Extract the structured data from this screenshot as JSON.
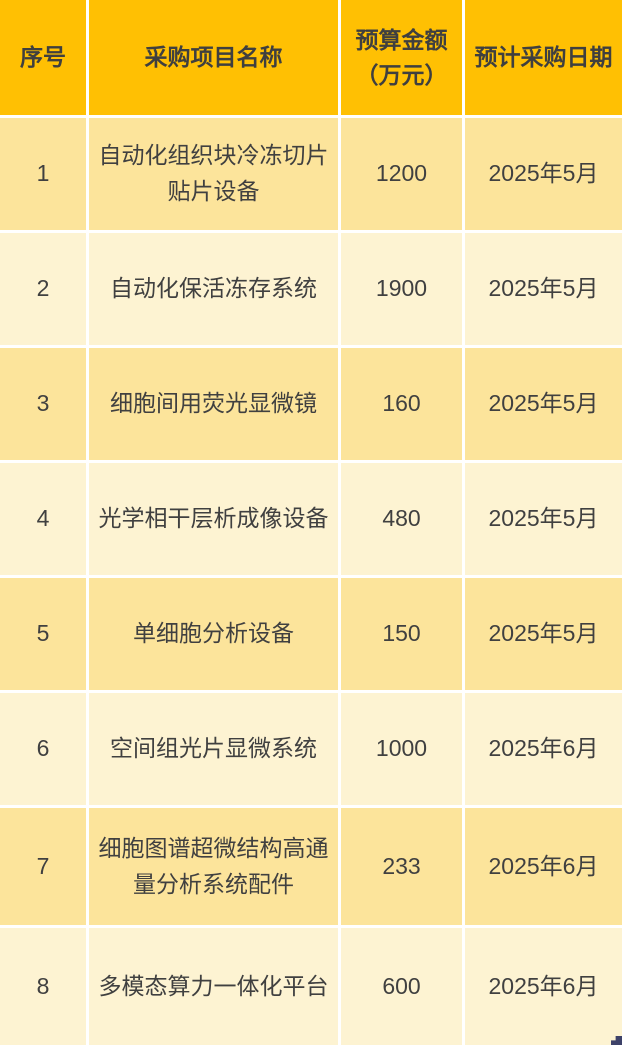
{
  "table": {
    "columns": [
      {
        "label": "序号"
      },
      {
        "label": "采购项目名称"
      },
      {
        "label": "预算金额\n（万元）"
      },
      {
        "label": "预计采购日期"
      }
    ],
    "rows": [
      {
        "no": "1",
        "name": "自动化组织块冷冻切片贴片设备",
        "budget": "1200",
        "date": "2025年5月"
      },
      {
        "no": "2",
        "name": "自动化保活冻存系统",
        "budget": "1900",
        "date": "2025年5月"
      },
      {
        "no": "3",
        "name": "细胞间用荧光显微镜",
        "budget": "160",
        "date": "2025年5月"
      },
      {
        "no": "4",
        "name": "光学相干层析成像设备",
        "budget": "480",
        "date": "2025年5月"
      },
      {
        "no": "5",
        "name": "单细胞分析设备",
        "budget": "150",
        "date": "2025年5月"
      },
      {
        "no": "6",
        "name": "空间组光片显微系统",
        "budget": "1000",
        "date": "2025年6月"
      },
      {
        "no": "7",
        "name": "细胞图谱超微结构高通量分析系统配件",
        "budget": "233",
        "date": "2025年6月"
      },
      {
        "no": "8",
        "name": "多模态算力一体化平台",
        "budget": "600",
        "date": "2025年6月"
      }
    ]
  },
  "colors": {
    "header_bg": "#FFC003",
    "row_odd_bg": "#FCE49B",
    "row_even_bg": "#FDF3D2",
    "gridline": "#FFFFFF",
    "text": "#404040",
    "corner_mark": "#3D4168"
  },
  "chart_data": {
    "type": "table",
    "title": "",
    "columns": [
      "序号",
      "采购项目名称",
      "预算金额（万元）",
      "预计采购日期"
    ],
    "rows": [
      [
        "1",
        "自动化组织块冷冻切片贴片设备",
        1200,
        "2025年5月"
      ],
      [
        "2",
        "自动化保活冻存系统",
        1900,
        "2025年5月"
      ],
      [
        "3",
        "细胞间用荧光显微镜",
        160,
        "2025年5月"
      ],
      [
        "4",
        "光学相干层析成像设备",
        480,
        "2025年5月"
      ],
      [
        "5",
        "单细胞分析设备",
        150,
        "2025年5月"
      ],
      [
        "6",
        "空间组光片显微系统",
        1000,
        "2025年6月"
      ],
      [
        "7",
        "细胞图谱超微结构高通量分析系统配件",
        233,
        "2025年6月"
      ],
      [
        "8",
        "多模态算力一体化平台",
        600,
        "2025年6月"
      ]
    ]
  }
}
